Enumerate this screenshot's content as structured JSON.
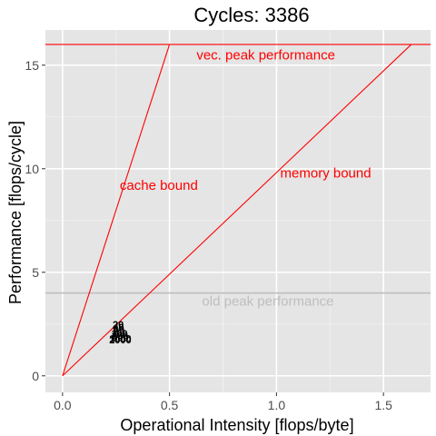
{
  "chart_data": {
    "type": "line",
    "title": "Cycles:  3386",
    "xlabel": "Operational Intensity [flops/byte]",
    "ylabel": "Performance [flops/cycle]",
    "xlim": [
      -0.08,
      1.72
    ],
    "ylim": [
      -0.8,
      16.7
    ],
    "x_ticks": [
      0.0,
      0.5,
      1.0,
      1.5
    ],
    "x_tick_labels": [
      "0.0",
      "0.5",
      "1.0",
      "1.5"
    ],
    "y_ticks": [
      0,
      5,
      10,
      15
    ],
    "y_tick_labels": [
      "0",
      "5",
      "10",
      "15"
    ],
    "grid": true,
    "background": "#e5e5e5",
    "colors": {
      "roofline": "#ff0000",
      "old_peak": "#bebebe",
      "points": "#000000"
    },
    "lines": [
      {
        "label": "vec. peak performance",
        "kind": "hline",
        "y": 16,
        "color": "#ff0000"
      },
      {
        "label": "cache bound",
        "kind": "segment",
        "x": [
          0,
          0.5
        ],
        "y": [
          0,
          16
        ],
        "color": "#ff0000"
      },
      {
        "label": "memory bound",
        "kind": "segment",
        "x": [
          0,
          1.63
        ],
        "y": [
          0,
          16
        ],
        "color": "#ff0000"
      },
      {
        "label": "old peak performance",
        "kind": "hline",
        "y": 4,
        "color": "#bebebe"
      }
    ],
    "annotations": [
      {
        "text": "vec. peak performance",
        "x": 0.95,
        "y": 15.5,
        "color": "#ff0000"
      },
      {
        "text": "cache bound",
        "x": 0.45,
        "y": 9.2,
        "color": "#ff0000"
      },
      {
        "text": "memory bound",
        "x": 1.23,
        "y": 9.8,
        "color": "#ff0000"
      },
      {
        "text": "old peak performance",
        "x": 0.96,
        "y": 3.6,
        "color": "#bebebe"
      }
    ],
    "points": [
      {
        "label": "20",
        "x": 0.26,
        "y": 2.5
      },
      {
        "label": "40",
        "x": 0.262,
        "y": 2.35
      },
      {
        "label": "60",
        "x": 0.263,
        "y": 2.25
      },
      {
        "label": "80",
        "x": 0.265,
        "y": 2.15
      },
      {
        "label": "100",
        "x": 0.266,
        "y": 2.05
      },
      {
        "label": "200",
        "x": 0.268,
        "y": 1.95
      },
      {
        "label": "500",
        "x": 0.27,
        "y": 1.85
      },
      {
        "label": "1000",
        "x": 0.27,
        "y": 1.8
      },
      {
        "label": "2000",
        "x": 0.27,
        "y": 1.75
      }
    ]
  }
}
